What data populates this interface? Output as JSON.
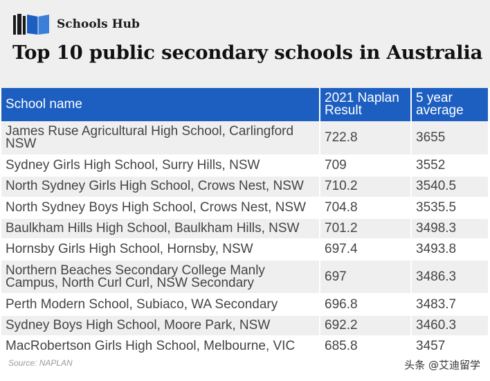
{
  "brand": {
    "name": "Schools Hub",
    "logo": "books-logo-icon",
    "accent": "#1d5fc1"
  },
  "title": "Top 10 public secondary schools in Australia",
  "table": {
    "headers": [
      "School name",
      "2021 Naplan Result",
      "5 year average"
    ],
    "rows": [
      [
        "James Ruse Agricultural High School, Carlingford NSW",
        "722.8",
        "3655"
      ],
      [
        "Sydney Girls High School, Surry Hills, NSW",
        "709",
        "3552"
      ],
      [
        "North Sydney Girls High School, Crows Nest, NSW",
        "710.2",
        "3540.5"
      ],
      [
        "North Sydney Boys High School, Crows Nest, NSW",
        "704.8",
        "3535.5"
      ],
      [
        "Baulkham Hills High School, Baulkham Hills, NSW",
        "701.2",
        "3498.3"
      ],
      [
        "Hornsby Girls High School, Hornsby, NSW",
        "697.4",
        "3493.8"
      ],
      [
        "Northern Beaches Secondary College Manly Campus, North Curl Curl, NSW Secondary",
        "697",
        "3486.3"
      ],
      [
        "Perth Modern School, Subiaco, WA Secondary",
        "696.8",
        "3483.7"
      ],
      [
        "Sydney Boys High School, Moore Park, NSW",
        "692.2",
        "3460.3"
      ],
      [
        "MacRobertson Girls High School, Melbourne, VIC",
        "685.8",
        "3457"
      ]
    ]
  },
  "source": "Source: NAPLAN",
  "watermark": "头条 @艾迪留学"
}
